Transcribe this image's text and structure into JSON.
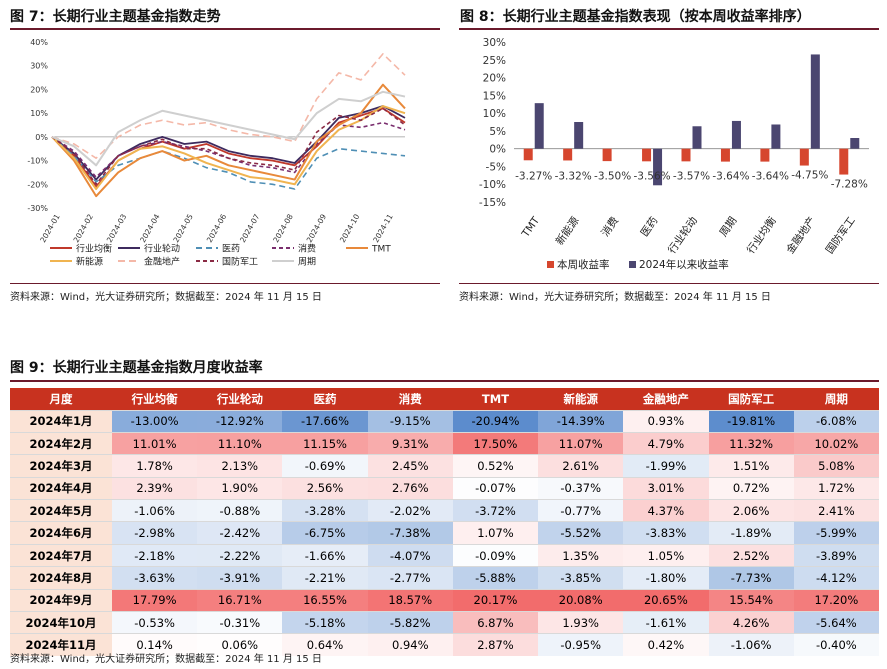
{
  "fig7": {
    "title": "图 7：长期行业主题基金指数走势",
    "source": "资料来源：Wind，光大证券研究所；数据截至：2024 年 11 月 15 日",
    "chart_data": {
      "type": "line",
      "y_ticks": [
        "40%",
        "30%",
        "20%",
        "10%",
        "0%",
        "-10%",
        "-20%",
        "-30%"
      ],
      "ylim": [
        -0.3,
        0.4
      ],
      "x_ticks": [
        "2024-01",
        "2024-02",
        "2024-03",
        "2024-04",
        "2024-05",
        "2024-06",
        "2024-07",
        "2024-08",
        "2024-09",
        "2024-10",
        "2024-11"
      ],
      "series": [
        {
          "name": "行业均衡",
          "color": "#c0392b",
          "dash": "",
          "width": 1.8,
          "values": [
            0,
            -0.08,
            -0.21,
            -0.1,
            -0.05,
            -0.02,
            -0.05,
            -0.03,
            -0.07,
            -0.09,
            -0.1,
            -0.12,
            -0.04,
            0.06,
            0.09,
            0.12,
            0.06
          ]
        },
        {
          "name": "行业轮动",
          "color": "#3d2a5e",
          "dash": "",
          "width": 1.8,
          "values": [
            0,
            -0.07,
            -0.18,
            -0.08,
            -0.03,
            0.0,
            -0.03,
            -0.02,
            -0.06,
            -0.08,
            -0.09,
            -0.11,
            -0.02,
            0.08,
            0.1,
            0.13,
            0.08
          ]
        },
        {
          "name": "医药",
          "color": "#4f8fb5",
          "dash": "6,4",
          "width": 1.6,
          "values": [
            0,
            -0.08,
            -0.19,
            -0.12,
            -0.09,
            -0.06,
            -0.09,
            -0.13,
            -0.15,
            -0.19,
            -0.2,
            -0.22,
            -0.09,
            -0.05,
            -0.06,
            -0.07,
            -0.08
          ]
        },
        {
          "name": "消费",
          "color": "#7a2e6e",
          "dash": "4,3",
          "width": 1.6,
          "values": [
            0,
            -0.06,
            -0.17,
            -0.08,
            -0.04,
            -0.02,
            -0.04,
            -0.06,
            -0.09,
            -0.12,
            -0.13,
            -0.15,
            -0.03,
            0.05,
            0.04,
            0.06,
            0.03
          ]
        },
        {
          "name": "TMT",
          "color": "#e8893a",
          "dash": "",
          "width": 2.0,
          "values": [
            0,
            -0.1,
            -0.25,
            -0.15,
            -0.09,
            -0.06,
            -0.1,
            -0.08,
            -0.12,
            -0.14,
            -0.16,
            -0.18,
            -0.02,
            0.05,
            0.1,
            0.22,
            0.12
          ]
        },
        {
          "name": "新能源",
          "color": "#f0b450",
          "dash": "",
          "width": 2.0,
          "values": [
            0,
            -0.09,
            -0.22,
            -0.1,
            -0.05,
            -0.04,
            -0.07,
            -0.11,
            -0.14,
            -0.17,
            -0.18,
            -0.2,
            -0.06,
            0.03,
            0.07,
            0.13,
            0.1
          ]
        },
        {
          "name": "金融地产",
          "color": "#f4b8a8",
          "dash": "7,4",
          "width": 1.6,
          "values": [
            0,
            -0.03,
            -0.09,
            0.0,
            0.05,
            0.07,
            0.05,
            0.06,
            0.03,
            0.01,
            0.0,
            -0.02,
            0.16,
            0.27,
            0.24,
            0.35,
            0.26
          ]
        },
        {
          "name": "国防军工",
          "color": "#8a2a44",
          "dash": "4,3",
          "width": 1.6,
          "values": [
            0,
            -0.07,
            -0.2,
            -0.08,
            -0.04,
            -0.01,
            -0.05,
            -0.05,
            -0.09,
            -0.11,
            -0.12,
            -0.14,
            0.02,
            0.09,
            0.07,
            0.12,
            0.05
          ]
        },
        {
          "name": "周期",
          "color": "#cfcfcf",
          "dash": "",
          "width": 2.0,
          "values": [
            0,
            -0.04,
            -0.12,
            0.02,
            0.07,
            0.11,
            0.09,
            0.07,
            0.05,
            0.03,
            0.01,
            -0.01,
            0.1,
            0.16,
            0.15,
            0.19,
            0.17
          ]
        }
      ]
    }
  },
  "fig8": {
    "title": "图 8：长期行业主题基金指数表现（按本周收益率排序）",
    "source": "资料来源：Wind，光大证券研究所；数据截至：2024 年 11 月 15 日",
    "chart_data": {
      "type": "bar",
      "categories": [
        "TMT",
        "新能源",
        "消费",
        "医药",
        "行业轮动",
        "周期",
        "行业均衡",
        "金融地产",
        "国防军工"
      ],
      "y_ticks": [
        "30%",
        "25%",
        "20%",
        "15%",
        "10%",
        "5%",
        "0%",
        "-5%",
        "-10%",
        "-15%"
      ],
      "ylim": [
        -0.15,
        0.3
      ],
      "series": [
        {
          "name": "本周收益率",
          "color": "#d6462e",
          "values": [
            -0.0327,
            -0.0332,
            -0.035,
            -0.0356,
            -0.0357,
            -0.0364,
            -0.0364,
            -0.0475,
            -0.0728
          ],
          "labels": [
            "-3.27%",
            "-3.32%",
            "-3.50%",
            "-3.56%",
            "-3.57%",
            "-3.64%",
            "-3.64%",
            "-4.75%",
            "-7.28%"
          ]
        },
        {
          "name": "2024年以来收益率",
          "color": "#4b4670",
          "values": [
            0.128,
            0.075,
            0.0,
            -0.103,
            0.063,
            0.078,
            0.068,
            0.265,
            0.03
          ]
        }
      ]
    }
  },
  "fig9": {
    "title": "图 9：长期行业主题基金指数月度收益率",
    "source": "资料来源：Wind，光大证券研究所；数据截至：2024 年 11 月 15 日",
    "columns": [
      "月度",
      "行业均衡",
      "行业轮动",
      "医药",
      "消费",
      "TMT",
      "新能源",
      "金融地产",
      "国防军工",
      "周期"
    ],
    "rows": [
      {
        "month": "2024年1月",
        "values": [
          -13.0,
          -12.92,
          -17.66,
          -9.15,
          -20.94,
          -14.39,
          0.93,
          -19.81,
          -6.08
        ],
        "cells": [
          "-13.00%",
          "-12.92%",
          "-17.66%",
          "-9.15%",
          "-20.94%",
          "-14.39%",
          "0.93%",
          "-19.81%",
          "-6.08%"
        ]
      },
      {
        "month": "2024年2月",
        "values": [
          11.01,
          11.1,
          11.15,
          9.31,
          17.5,
          11.07,
          4.79,
          11.32,
          10.02
        ],
        "cells": [
          "11.01%",
          "11.10%",
          "11.15%",
          "9.31%",
          "17.50%",
          "11.07%",
          "4.79%",
          "11.32%",
          "10.02%"
        ]
      },
      {
        "month": "2024年3月",
        "values": [
          1.78,
          2.13,
          -0.69,
          2.45,
          0.52,
          2.61,
          -1.99,
          1.51,
          5.08
        ],
        "cells": [
          "1.78%",
          "2.13%",
          "-0.69%",
          "2.45%",
          "0.52%",
          "2.61%",
          "-1.99%",
          "1.51%",
          "5.08%"
        ]
      },
      {
        "month": "2024年4月",
        "values": [
          2.39,
          1.9,
          2.56,
          2.76,
          -0.07,
          -0.37,
          3.01,
          0.72,
          1.72
        ],
        "cells": [
          "2.39%",
          "1.90%",
          "2.56%",
          "2.76%",
          "-0.07%",
          "-0.37%",
          "3.01%",
          "0.72%",
          "1.72%"
        ]
      },
      {
        "month": "2024年5月",
        "values": [
          -1.06,
          -0.88,
          -3.28,
          -2.02,
          -3.72,
          -0.77,
          4.37,
          2.06,
          2.41
        ],
        "cells": [
          "-1.06%",
          "-0.88%",
          "-3.28%",
          "-2.02%",
          "-3.72%",
          "-0.77%",
          "4.37%",
          "2.06%",
          "2.41%"
        ]
      },
      {
        "month": "2024年6月",
        "values": [
          -2.98,
          -2.42,
          -6.75,
          -7.38,
          1.07,
          -5.52,
          -3.83,
          -1.89,
          -5.99
        ],
        "cells": [
          "-2.98%",
          "-2.42%",
          "-6.75%",
          "-7.38%",
          "1.07%",
          "-5.52%",
          "-3.83%",
          "-1.89%",
          "-5.99%"
        ]
      },
      {
        "month": "2024年7月",
        "values": [
          -2.18,
          -2.22,
          -1.66,
          -4.07,
          -0.09,
          1.35,
          1.05,
          2.52,
          -3.89
        ],
        "cells": [
          "-2.18%",
          "-2.22%",
          "-1.66%",
          "-4.07%",
          "-0.09%",
          "1.35%",
          "1.05%",
          "2.52%",
          "-3.89%"
        ]
      },
      {
        "month": "2024年8月",
        "values": [
          -3.63,
          -3.91,
          -2.21,
          -2.77,
          -5.88,
          -3.85,
          -1.8,
          -7.73,
          -4.12
        ],
        "cells": [
          "-3.63%",
          "-3.91%",
          "-2.21%",
          "-2.77%",
          "-5.88%",
          "-3.85%",
          "-1.80%",
          "-7.73%",
          "-4.12%"
        ]
      },
      {
        "month": "2024年9月",
        "values": [
          17.79,
          16.71,
          16.55,
          18.57,
          20.17,
          20.08,
          20.65,
          15.54,
          17.2
        ],
        "cells": [
          "17.79%",
          "16.71%",
          "16.55%",
          "18.57%",
          "20.17%",
          "20.08%",
          "20.65%",
          "15.54%",
          "17.20%"
        ]
      },
      {
        "month": "2024年10月",
        "values": [
          -0.53,
          -0.31,
          -5.18,
          -5.82,
          6.87,
          1.93,
          -1.61,
          4.26,
          -5.64
        ],
        "cells": [
          "-0.53%",
          "-0.31%",
          "-5.18%",
          "-5.82%",
          "6.87%",
          "1.93%",
          "-1.61%",
          "4.26%",
          "-5.64%"
        ]
      },
      {
        "month": "2024年11月",
        "values": [
          0.14,
          0.06,
          0.64,
          0.94,
          2.87,
          -0.95,
          0.42,
          -1.06,
          -0.4
        ],
        "cells": [
          "0.14%",
          "0.06%",
          "0.64%",
          "0.94%",
          "2.87%",
          "-0.95%",
          "0.42%",
          "-1.06%",
          "-0.40%"
        ]
      }
    ]
  }
}
